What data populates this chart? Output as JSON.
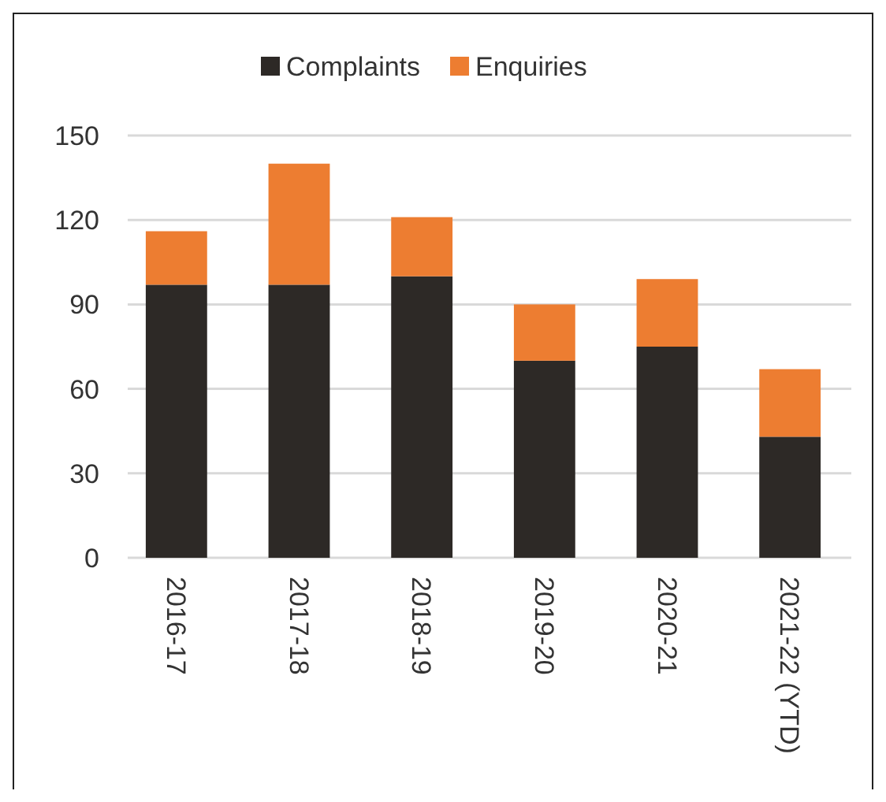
{
  "chart_data": {
    "type": "bar",
    "stacked": true,
    "categories": [
      "2016-17",
      "2017-18",
      "2018-19",
      "2019-20",
      "2020-21",
      "2021-22 (YTD)"
    ],
    "series": [
      {
        "name": "Complaints",
        "color": "#2d2926",
        "values": [
          97,
          97,
          100,
          70,
          75,
          43
        ]
      },
      {
        "name": "Enquiries",
        "color": "#ed7d31",
        "values": [
          19,
          43,
          21,
          20,
          24,
          24
        ]
      }
    ],
    "ylim": [
      0,
      150
    ],
    "yticks": [
      0,
      30,
      60,
      90,
      120,
      150
    ],
    "grid": "y",
    "legend": "top"
  }
}
